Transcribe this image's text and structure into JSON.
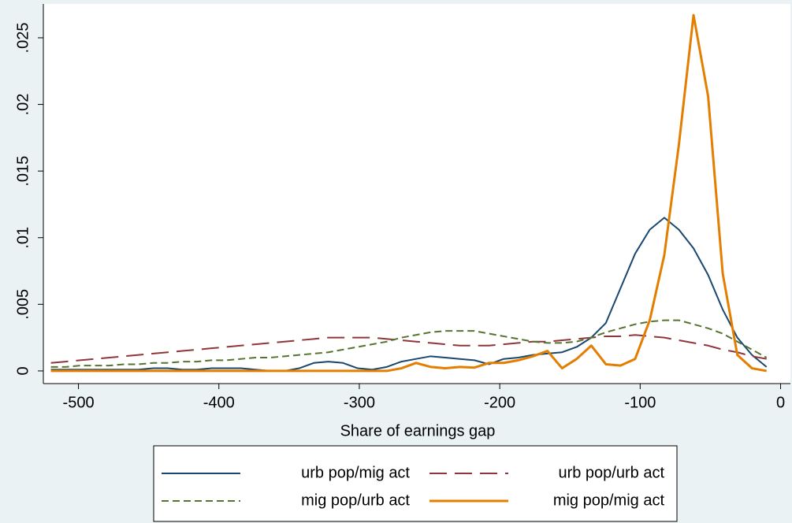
{
  "chart_data": {
    "type": "line",
    "xlabel": "Share of earnings gap",
    "x": [
      -519.6,
      -509.2,
      -498.8,
      -488.4,
      -478,
      -467.6,
      -457.2,
      -446.8,
      -436.4,
      -426,
      -415.6,
      -405.2,
      -394.8,
      -384.4,
      -374,
      -363.6,
      -353.2,
      -342.8,
      -332.4,
      -322,
      -311.6,
      -301.2,
      -290.8,
      -280.4,
      -270,
      -259.6,
      -249.2,
      -238.8,
      -228.4,
      -218,
      -207.6,
      -197.2,
      -186.8,
      -176.4,
      -166,
      -155.6,
      -145.2,
      -134.8,
      -124.4,
      -114,
      -103.6,
      -93.2,
      -82.8,
      -72.4,
      -62,
      -51.6,
      -41.2,
      -30.8,
      -20.4,
      -10
    ],
    "series": [
      {
        "name": "urb pop/mig act",
        "color": "#1a476f",
        "dash": "solid",
        "line_width": 2,
        "values": [
          0.0001,
          0.0001,
          0.0001,
          0.0001,
          0.0001,
          0.0001,
          0.0001,
          0.0002,
          0.0002,
          0.0001,
          0.0001,
          0.0002,
          0.0002,
          0.0002,
          0.0001,
          0,
          0,
          0.0002,
          0.0006,
          0.0007,
          0.0006,
          0.0002,
          0.0001,
          0.0003,
          0.0007,
          0.0009,
          0.0011,
          0.001,
          0.0009,
          0.0008,
          0.0005,
          0.0009,
          0.001,
          0.0012,
          0.0013,
          0.0014,
          0.0018,
          0.0025,
          0.0036,
          0.0062,
          0.0088,
          0.0106,
          0.0115,
          0.0106,
          0.0092,
          0.0072,
          0.0046,
          0.0025,
          0.0012,
          0.0003
        ]
      },
      {
        "name": "urb pop/urb act",
        "color": "#90353b",
        "dash": "longdash",
        "line_width": 2,
        "values": [
          0.0006,
          0.0007,
          0.0008,
          0.0009,
          0.001,
          0.0011,
          0.0012,
          0.0013,
          0.0014,
          0.0015,
          0.0016,
          0.0017,
          0.0018,
          0.0019,
          0.002,
          0.0021,
          0.0022,
          0.0023,
          0.0024,
          0.0025,
          0.0025,
          0.0025,
          0.0025,
          0.0024,
          0.0023,
          0.0022,
          0.0021,
          0.002,
          0.0019,
          0.0019,
          0.0019,
          0.002,
          0.0021,
          0.0022,
          0.0022,
          0.0023,
          0.0024,
          0.0025,
          0.0026,
          0.0026,
          0.0027,
          0.0026,
          0.0025,
          0.0023,
          0.0021,
          0.0019,
          0.0016,
          0.0014,
          0.0011,
          0.0009
        ]
      },
      {
        "name": "mig pop/urb act",
        "color": "#55752f",
        "dash": "shortdash",
        "line_width": 2,
        "values": [
          0.0003,
          0.0003,
          0.0004,
          0.0004,
          0.0004,
          0.0005,
          0.0005,
          0.0006,
          0.0006,
          0.0007,
          0.0007,
          0.0008,
          0.0008,
          0.0009,
          0.001,
          0.001,
          0.0011,
          0.0012,
          0.0013,
          0.0014,
          0.0016,
          0.0018,
          0.002,
          0.0022,
          0.0025,
          0.0027,
          0.0029,
          0.003,
          0.003,
          0.003,
          0.0028,
          0.0026,
          0.0024,
          0.0022,
          0.0021,
          0.0021,
          0.0022,
          0.0025,
          0.0029,
          0.0032,
          0.0035,
          0.0037,
          0.0038,
          0.0038,
          0.0035,
          0.0032,
          0.0028,
          0.0022,
          0.0016,
          0.001
        ]
      },
      {
        "name": "mig pop/mig act",
        "color": "#e37e00",
        "dash": "solid",
        "line_width": 3,
        "values": [
          0,
          0,
          0,
          0,
          0,
          0,
          0,
          0,
          0,
          0,
          0,
          0,
          0,
          0,
          0,
          0,
          0,
          0,
          0,
          0,
          0,
          0,
          0,
          0,
          0.0002,
          0.0006,
          0.0003,
          0.0002,
          0.0003,
          0.00025,
          0.0006,
          0.0006,
          0.0008,
          0.0011,
          0.0015,
          0.0002,
          0.0009,
          0.0019,
          0.0005,
          0.0004,
          0.0009,
          0.0038,
          0.0087,
          0.017,
          0.0267,
          0.0206,
          0.0073,
          0.0012,
          0.0002,
          0
        ]
      }
    ],
    "xlim": [
      -525,
      7
    ],
    "ylim": [
      -0.00095,
      0.02754
    ],
    "xticks": [
      -500,
      -400,
      -300,
      -200,
      -100,
      0
    ],
    "yticks": [
      0,
      {
        "value": 0.005,
        "label": ".005"
      },
      {
        "value": 0.01,
        "label": ".01"
      },
      {
        "value": 0.015,
        "label": ".015"
      },
      {
        "value": 0.02,
        "label": ".02"
      },
      {
        "value": 0.025,
        "label": ".025"
      }
    ],
    "grid": false,
    "legend": "bottom"
  }
}
